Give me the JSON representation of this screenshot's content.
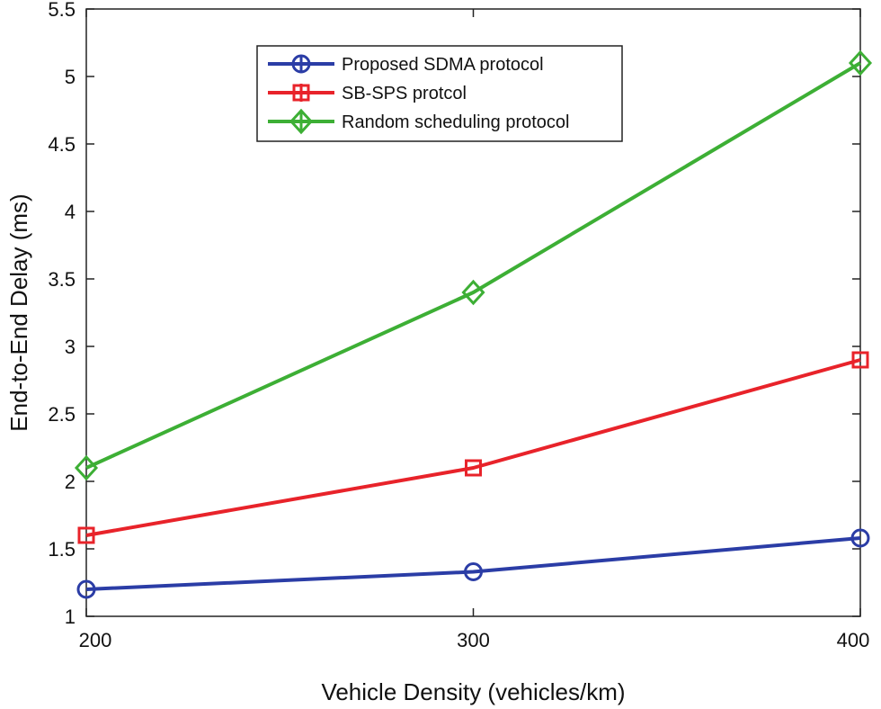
{
  "chart_data": {
    "type": "line",
    "title": "",
    "xlabel": "Vehicle Density (vehicles/km)",
    "ylabel": "End-to-End Delay (ms)",
    "x": [
      200,
      300,
      400
    ],
    "xlim": [
      200,
      400
    ],
    "ylim": [
      1,
      5.5
    ],
    "xticks": [
      "200",
      "300",
      "400"
    ],
    "yticks": [
      "1",
      "1.5",
      "2",
      "2.5",
      "3",
      "3.5",
      "4",
      "4.5",
      "5",
      "5.5"
    ],
    "grid": false,
    "legend_position": "top-center",
    "series": [
      {
        "name": "Proposed SDMA protocol",
        "values": [
          1.2,
          1.33,
          1.58
        ],
        "color": "#2b3da6",
        "marker": "circle"
      },
      {
        "name": "SB-SPS protcol",
        "values": [
          1.6,
          2.1,
          2.9
        ],
        "color": "#e8232a",
        "marker": "square"
      },
      {
        "name": "Random scheduling protocol",
        "values": [
          2.1,
          3.4,
          5.1
        ],
        "color": "#3daf35",
        "marker": "diamond"
      }
    ]
  }
}
